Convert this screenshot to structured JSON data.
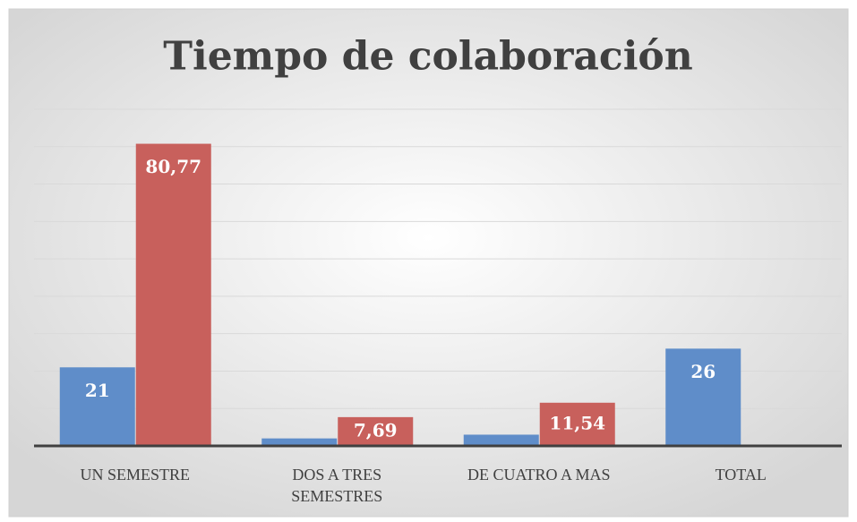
{
  "chart_data": {
    "type": "bar",
    "title": "Tiempo de colaboración",
    "categories": [
      "UN SEMESTRE",
      "DOS A TRES SEMESTRES",
      "DE CUATRO A MAS",
      "TOTAL"
    ],
    "series": [
      {
        "color": "#5f8dc9",
        "values": [
          21,
          2,
          3,
          26
        ],
        "value_labels": [
          "21",
          null,
          null,
          "26"
        ]
      },
      {
        "color": "#c8605c",
        "values": [
          80.77,
          7.69,
          11.54,
          null
        ],
        "value_labels": [
          "80,77",
          "7,69",
          "11,54",
          null
        ]
      }
    ],
    "ylim": [
      0,
      90
    ],
    "yticks": [
      0,
      10,
      20,
      30,
      40,
      50,
      60,
      70,
      80,
      90
    ],
    "grid": true
  }
}
